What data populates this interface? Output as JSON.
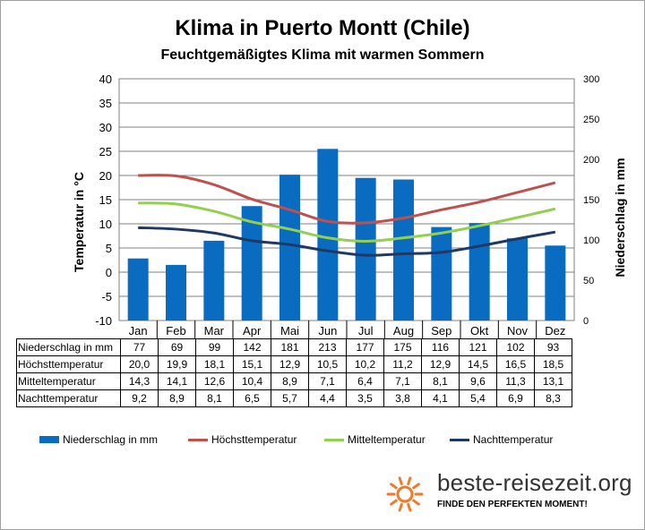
{
  "title": "Klima in Puerto Montt (Chile)",
  "subtitle": "Feuchtgemäßigtes  Klima mit warmen Sommern",
  "chart_data": {
    "type": "bar",
    "categories": [
      "Jan",
      "Feb",
      "Mar",
      "Apr",
      "Mai",
      "Jun",
      "Jul",
      "Aug",
      "Sep",
      "Okt",
      "Nov",
      "Dez"
    ],
    "ylabel_left": "Temperatur in °C",
    "ylabel_right": "Niederschlag in mm",
    "ylim_left": [
      -10,
      40
    ],
    "ylim_right": [
      0,
      300
    ],
    "yticks_left": [
      "40",
      "35",
      "30",
      "25",
      "20",
      "15",
      "10",
      "5",
      "0",
      "-5",
      "-10"
    ],
    "yticks_right": [
      "300",
      "250",
      "200",
      "150",
      "100",
      "50",
      "0"
    ],
    "grid": true,
    "series": [
      {
        "name": "Niederschlag in mm",
        "type": "bar",
        "axis": "right",
        "color": "#0a6cc0",
        "values": [
          77,
          69,
          99,
          142,
          181,
          213,
          177,
          175,
          116,
          121,
          102,
          93
        ],
        "labels": [
          "77",
          "69",
          "99",
          "142",
          "181",
          "213",
          "177",
          "175",
          "116",
          "121",
          "102",
          "93"
        ]
      },
      {
        "name": "Höchsttemperatur",
        "type": "line",
        "axis": "left",
        "color": "#c0504d",
        "values": [
          20.0,
          19.9,
          18.1,
          15.1,
          12.9,
          10.5,
          10.2,
          11.2,
          12.9,
          14.5,
          16.5,
          18.5
        ],
        "labels": [
          "20,0",
          "19,9",
          "18,1",
          "15,1",
          "12,9",
          "10,5",
          "10,2",
          "11,2",
          "12,9",
          "14,5",
          "16,5",
          "18,5"
        ]
      },
      {
        "name": "Mitteltemperatur",
        "type": "line",
        "axis": "left",
        "color": "#92d050",
        "values": [
          14.3,
          14.1,
          12.6,
          10.4,
          8.9,
          7.1,
          6.4,
          7.1,
          8.1,
          9.6,
          11.3,
          13.1
        ],
        "labels": [
          "14,3",
          "14,1",
          "12,6",
          "10,4",
          "8,9",
          "7,1",
          "6,4",
          "7,1",
          "8,1",
          "9,6",
          "11,3",
          "13,1"
        ]
      },
      {
        "name": "Nachttemperatur",
        "type": "line",
        "axis": "left",
        "color": "#1f3864",
        "values": [
          9.2,
          8.9,
          8.1,
          6.5,
          5.7,
          4.4,
          3.5,
          3.8,
          4.1,
          5.4,
          6.9,
          8.3
        ],
        "labels": [
          "9,2",
          "8,9",
          "8,1",
          "6,5",
          "5,7",
          "4,4",
          "3,5",
          "3,8",
          "4,1",
          "5,4",
          "6,9",
          "8,3"
        ]
      }
    ],
    "legend": "bottom"
  },
  "logo": {
    "text": "beste-reisezeit.org",
    "tagline": "FINDE DEN PERFEKTEN MOMENT!",
    "sun_color": "#f07a2a"
  }
}
